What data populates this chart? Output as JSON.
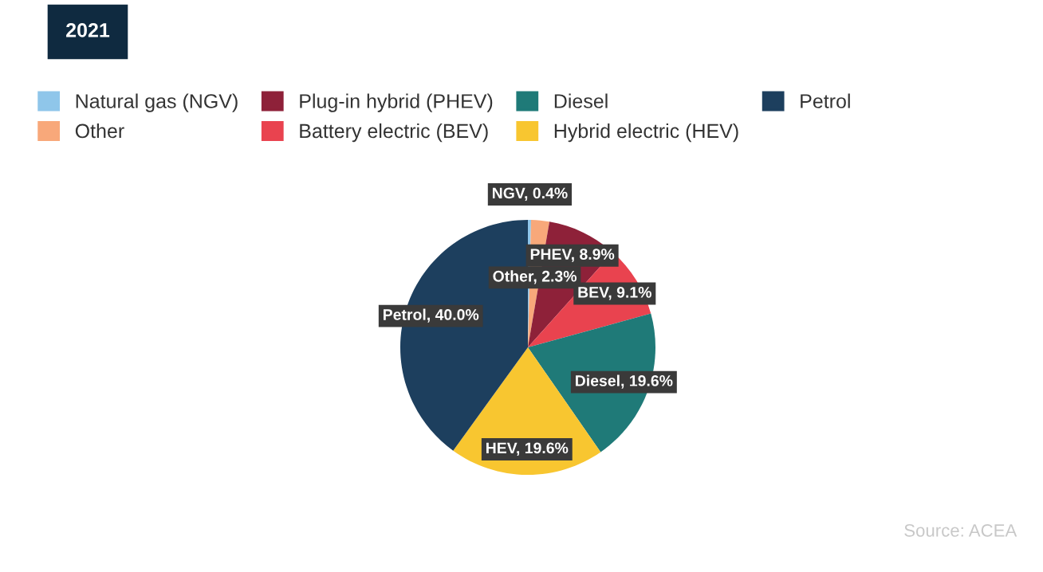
{
  "chart_data": {
    "type": "pie",
    "title": "2021",
    "categories": [
      "Natural gas (NGV)",
      "Other",
      "Plug-in hybrid (PHEV)",
      "Battery electric (BEV)",
      "Diesel",
      "Hybrid electric (HEV)",
      "Petrol"
    ],
    "values": [
      0.4,
      2.3,
      8.9,
      9.1,
      19.6,
      19.6,
      40.0
    ],
    "colors": [
      "#8fc6ea",
      "#f8a87a",
      "#8e2139",
      "#e9434f",
      "#1f7a78",
      "#f8c630",
      "#1d3f5e"
    ],
    "value_labels": [
      "NGV, 0.4%",
      "Other, 2.3%",
      "PHEV, 8.9%",
      "BEV, 9.1%",
      "Diesel, 19.6%",
      "HEV, 19.6%",
      "Petrol, 40.0%"
    ],
    "legend": "top left",
    "annotations": [
      "Source: ACEA"
    ]
  }
}
